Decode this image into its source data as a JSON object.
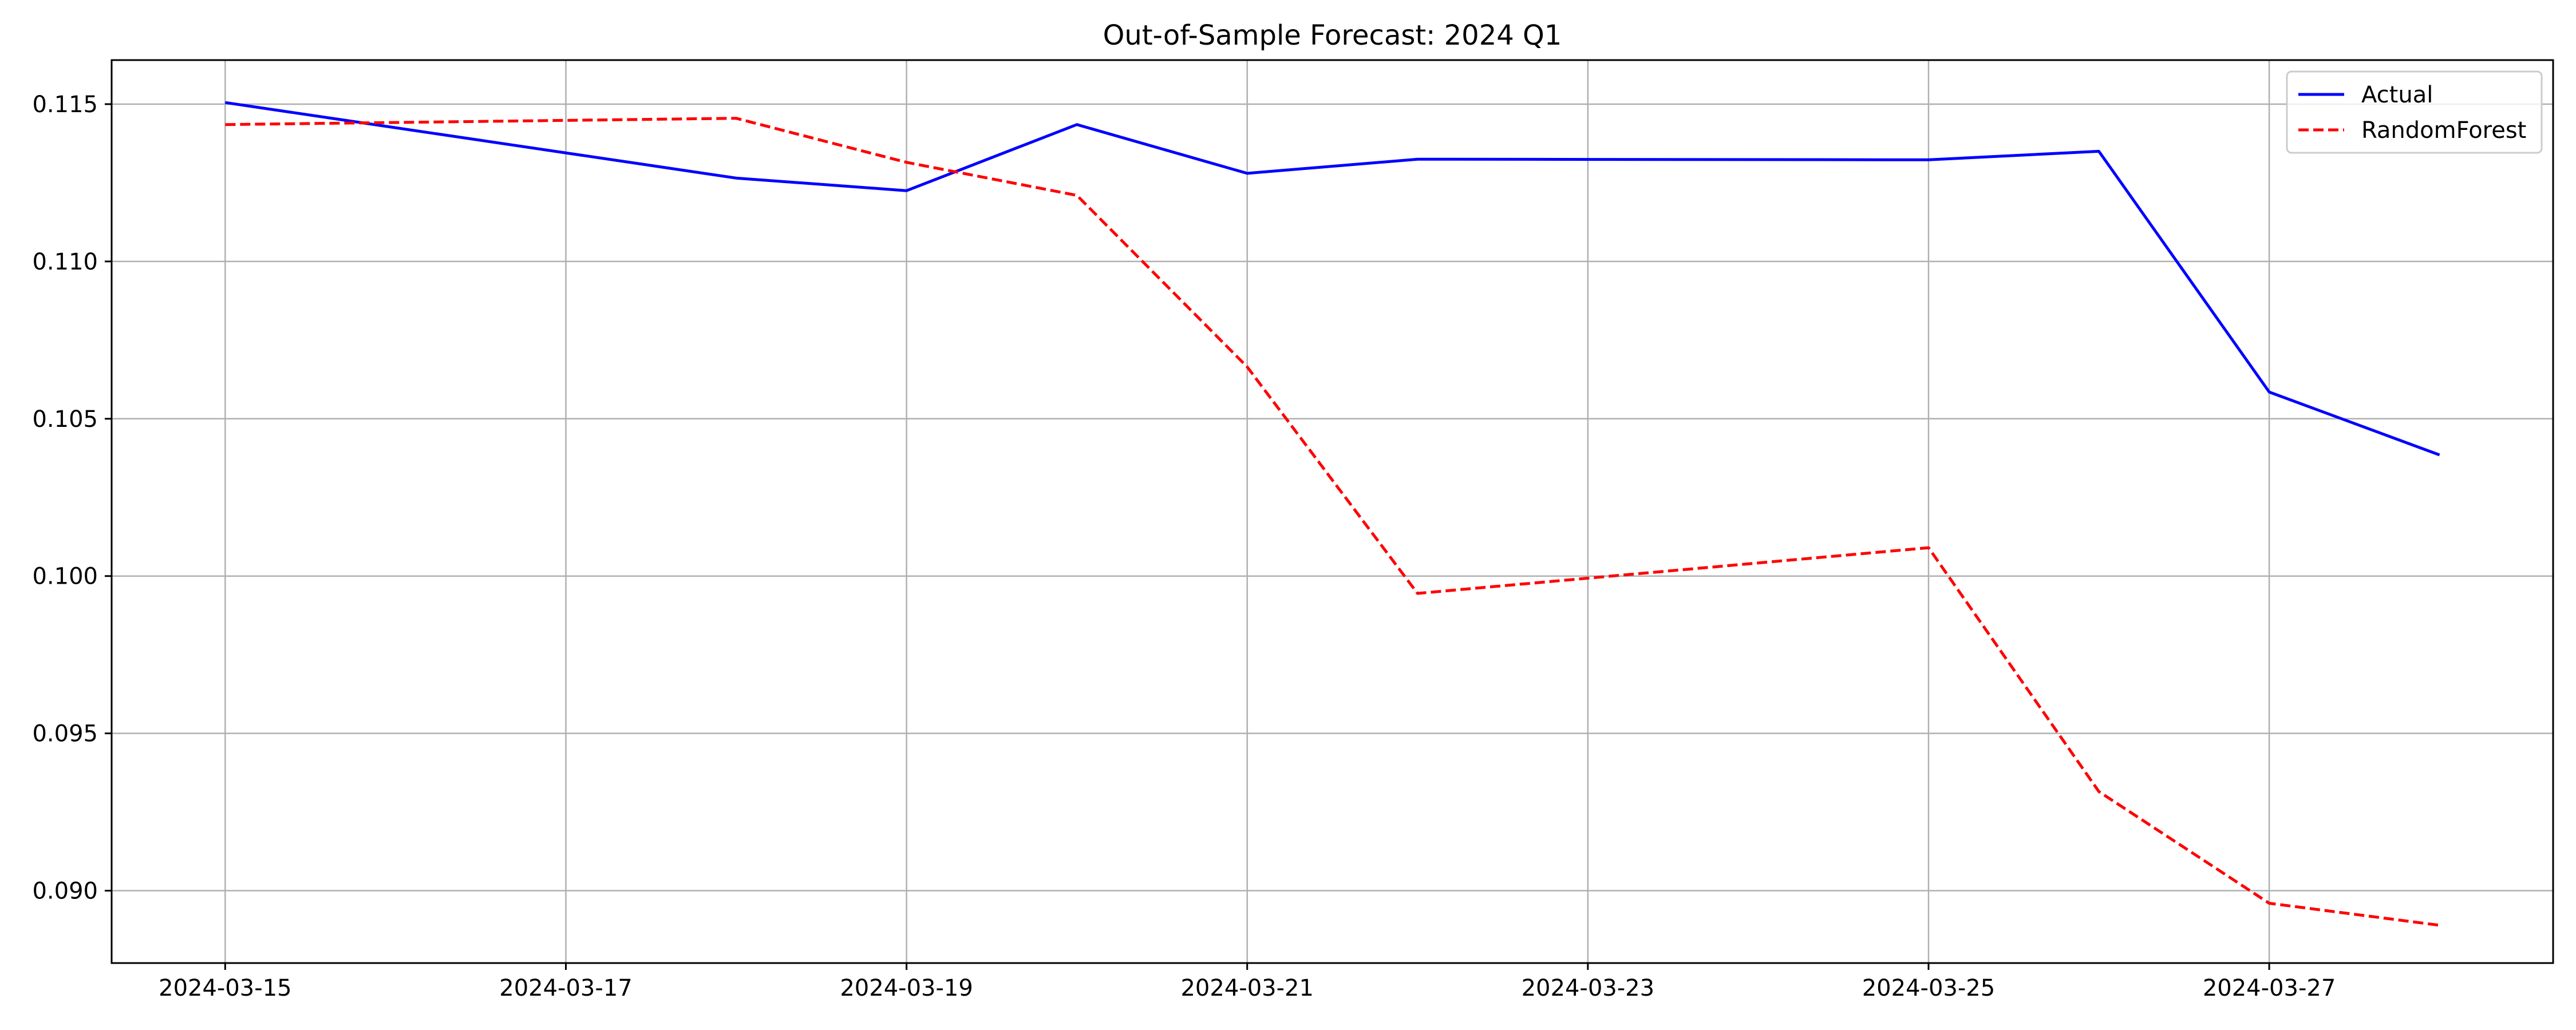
{
  "chart_data": {
    "type": "line",
    "title": "Out-of-Sample Forecast: 2024 Q1",
    "xlabel": "",
    "ylabel": "",
    "x": [
      "2024-03-15",
      "2024-03-16",
      "2024-03-17",
      "2024-03-18",
      "2024-03-19",
      "2024-03-20",
      "2024-03-21",
      "2024-03-22",
      "2024-03-23",
      "2024-03-24",
      "2024-03-25",
      "2024-03-26",
      "2024-03-27",
      "2024-03-28"
    ],
    "x_ticks": [
      "2024-03-15",
      "2024-03-17",
      "2024-03-19",
      "2024-03-21",
      "2024-03-23",
      "2024-03-25",
      "2024-03-27"
    ],
    "xlim": [
      "2024-03-14T08:00",
      "2024-03-28T16:00"
    ],
    "ylim": [
      0.0877,
      0.1164
    ],
    "y_ticks": [
      "0.090",
      "0.095",
      "0.100",
      "0.105",
      "0.110",
      "0.115"
    ],
    "grid": true,
    "legend": "top-right",
    "series": [
      {
        "name": "Actual",
        "color": "#0000ff",
        "style": "solid",
        "points": [
          [
            "2024-03-15",
            0.11505
          ],
          [
            "2024-03-18",
            0.11265
          ],
          [
            "2024-03-19",
            0.11225
          ],
          [
            "2024-03-20",
            0.11435
          ],
          [
            "2024-03-21",
            0.1128
          ],
          [
            "2024-03-22",
            0.11325
          ],
          [
            "2024-03-25",
            0.11323
          ],
          [
            "2024-03-26",
            0.1135
          ],
          [
            "2024-03-27",
            0.10585
          ],
          [
            "2024-03-28",
            0.10385
          ]
        ]
      },
      {
        "name": "RandomForest",
        "color": "#ff0000",
        "style": "dashed",
        "points": [
          [
            "2024-03-15",
            0.11435
          ],
          [
            "2024-03-18",
            0.11455
          ],
          [
            "2024-03-19",
            0.11315
          ],
          [
            "2024-03-20",
            0.1121
          ],
          [
            "2024-03-21",
            0.10665
          ],
          [
            "2024-03-22",
            0.09945
          ],
          [
            "2024-03-25",
            0.1009
          ],
          [
            "2024-03-26",
            0.09315
          ],
          [
            "2024-03-27",
            0.0896
          ],
          [
            "2024-03-28",
            0.0889
          ]
        ]
      }
    ]
  }
}
